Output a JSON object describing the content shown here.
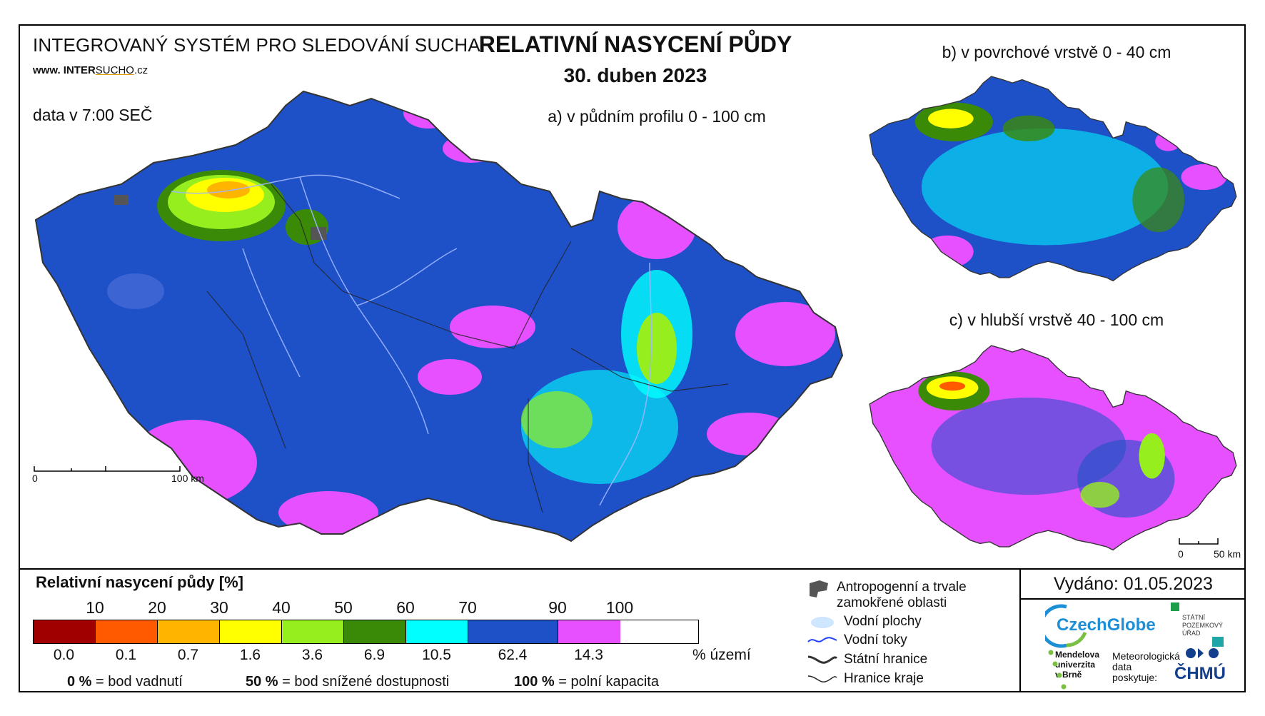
{
  "header": {
    "system_title": "INTEGROVANÝ SYSTÉM PRO SLEDOVÁNÍ SUCHA",
    "website_prefix": "www. INTER",
    "website_brand": "SUCHO",
    "website_suffix": ".cz",
    "data_time": "data v 7:00 SEČ",
    "main_title": "RELATIVNÍ NASYCENÍ PŮDY",
    "date": "30. duben 2023"
  },
  "maps": {
    "a": {
      "label": "a) v půdním profilu 0 - 100 cm",
      "scale_start": "0",
      "scale_end": "100 km"
    },
    "b": {
      "label": "b) v povrchové vrstvě 0 - 40 cm"
    },
    "c": {
      "label": "c) v hlubší vrstvě 40 - 100 cm",
      "scale_start": "0",
      "scale_end": "50 km"
    }
  },
  "legend": {
    "title": "Relativní nasycení půdy [%]",
    "ticks": [
      "10",
      "20",
      "30",
      "40",
      "50",
      "60",
      "70",
      "90",
      "100"
    ],
    "classes": [
      {
        "color": "#a00000",
        "area_pct": "0.0"
      },
      {
        "color": "#ff5a00",
        "area_pct": "0.1"
      },
      {
        "color": "#ffb400",
        "area_pct": "0.7"
      },
      {
        "color": "#ffff00",
        "area_pct": "1.6"
      },
      {
        "color": "#96ee1e",
        "area_pct": "3.6"
      },
      {
        "color": "#3a8a08",
        "area_pct": "6.9"
      },
      {
        "color": "#00ffff",
        "area_pct": "10.5"
      },
      {
        "color": "#1e50c8",
        "area_pct": "62.4"
      },
      {
        "color": "#e650ff",
        "area_pct": "14.3"
      }
    ],
    "unit": "% území",
    "notes": [
      {
        "value": "0 %",
        "text": "= bod vadnutí"
      },
      {
        "value": "50 %",
        "text": "= bod snížené dostupnosti"
      },
      {
        "value": "100 %",
        "text": "= polní kapacita"
      }
    ]
  },
  "symbols": [
    {
      "icon": "anthropogenic-area-icon",
      "label": "Antropogenní a trvale zamokřené oblasti"
    },
    {
      "icon": "water-body-icon",
      "label": "Vodní plochy"
    },
    {
      "icon": "river-icon",
      "label": "Vodní toky"
    },
    {
      "icon": "state-border-icon",
      "label": "Státní hranice"
    },
    {
      "icon": "region-border-icon",
      "label": "Hranice kraje"
    }
  ],
  "footer": {
    "issued": "Vydáno: 01.05.2023",
    "czechglobe": "CzechGlobe",
    "spu": "STÁTNÍ POZEMKOVÝ ÚŘAD",
    "mendel": "Mendelova univerzita v Brně",
    "meteo": "Meteorologická data poskytuje:",
    "chmu": "ČHMÚ"
  }
}
